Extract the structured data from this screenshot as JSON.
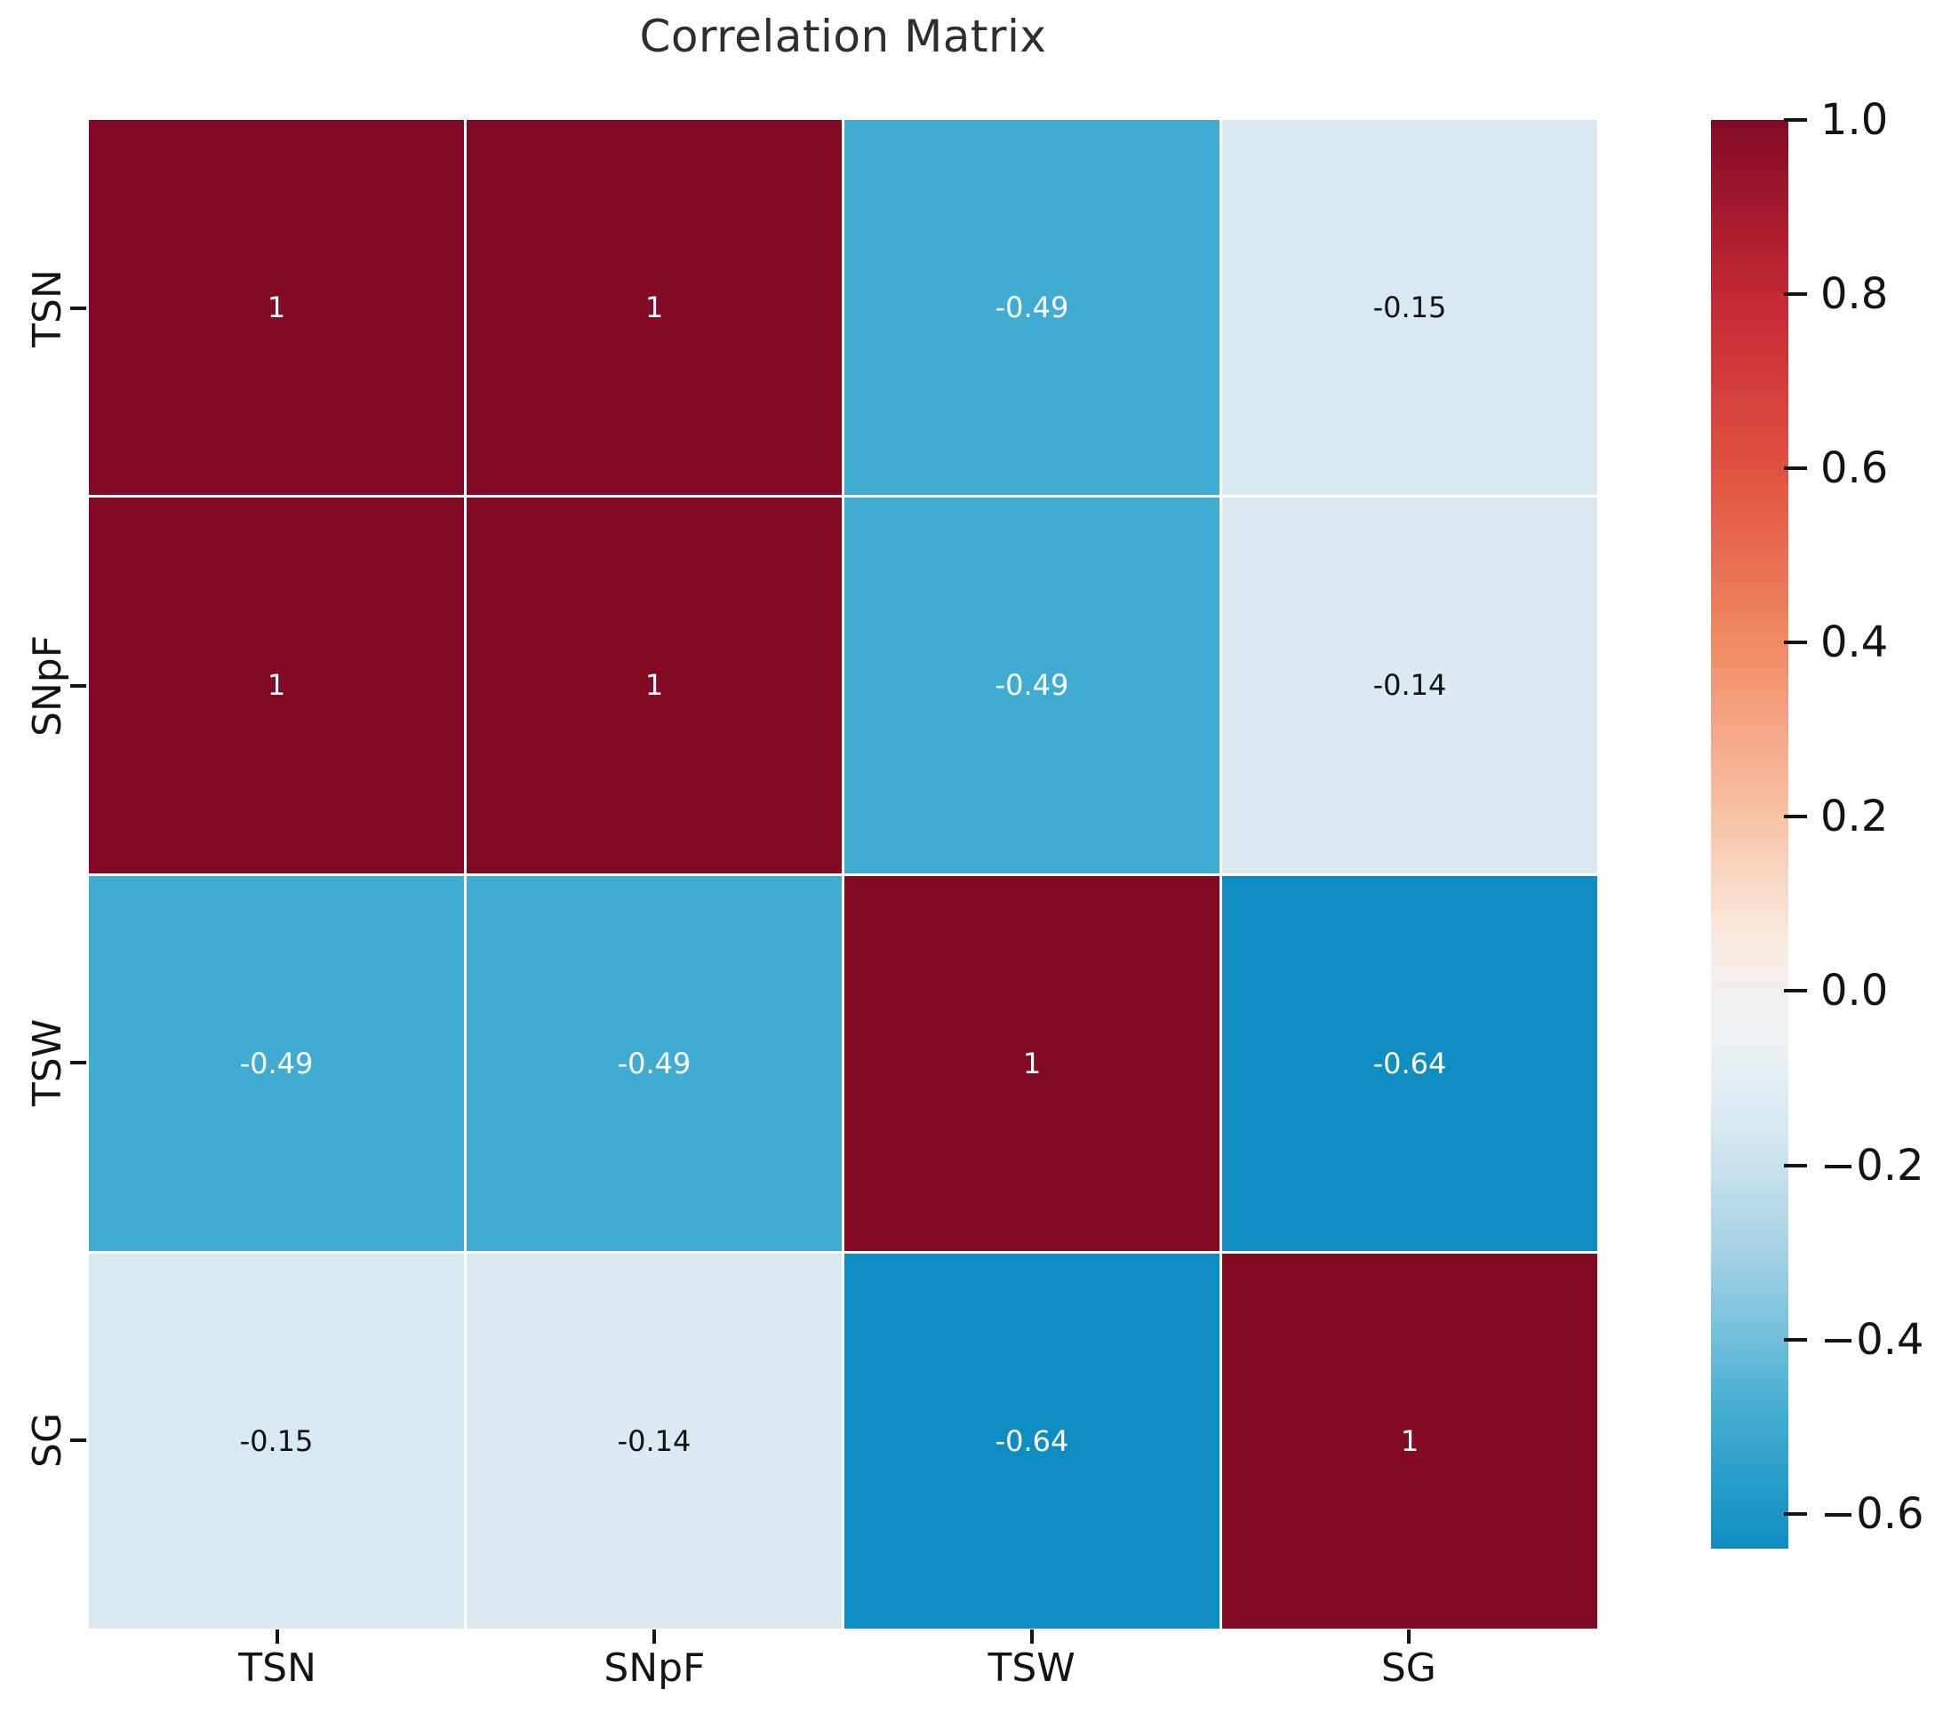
{
  "title": "Correlation Matrix",
  "chart_data": {
    "type": "heatmap",
    "categories": [
      "TSN",
      "SNpF",
      "TSW",
      "SG"
    ],
    "matrix": [
      [
        1,
        1,
        -0.49,
        -0.15
      ],
      [
        1,
        1,
        -0.49,
        -0.14
      ],
      [
        -0.49,
        -0.49,
        1,
        -0.64
      ],
      [
        -0.15,
        -0.14,
        -0.64,
        1
      ]
    ],
    "cell_labels": [
      [
        "1",
        "1",
        "-0.49",
        "-0.15"
      ],
      [
        "1",
        "1",
        "-0.49",
        "-0.14"
      ],
      [
        "-0.49",
        "-0.49",
        "1",
        "-0.64"
      ],
      [
        "-0.15",
        "-0.14",
        "-0.64",
        "1"
      ]
    ],
    "vmin": -0.64,
    "vmax": 1.0,
    "grid": false,
    "legend_position": "right-colorbar",
    "colorbar_ticks": [
      {
        "value": 1.0,
        "label": "1.0"
      },
      {
        "value": 0.8,
        "label": "0.8"
      },
      {
        "value": 0.6,
        "label": "0.6"
      },
      {
        "value": 0.4,
        "label": "0.4"
      },
      {
        "value": 0.2,
        "label": "0.2"
      },
      {
        "value": 0.0,
        "label": "0.0"
      },
      {
        "value": -0.2,
        "label": "−0.2"
      },
      {
        "value": -0.4,
        "label": "−0.4"
      },
      {
        "value": -0.6,
        "label": "−0.6"
      }
    ],
    "colormap_stops": [
      {
        "v": 1.0,
        "c": "#820a24"
      },
      {
        "v": 0.8,
        "c": "#c32834"
      },
      {
        "v": 0.6,
        "c": "#e05141"
      },
      {
        "v": 0.4,
        "c": "#f08a64"
      },
      {
        "v": 0.2,
        "c": "#f8c3a6"
      },
      {
        "v": 0.05,
        "c": "#f9ece3"
      },
      {
        "v": -0.05,
        "c": "#edf2f5"
      },
      {
        "v": -0.15,
        "c": "#d9e9f1"
      },
      {
        "v": -0.3,
        "c": "#a5d2e5"
      },
      {
        "v": -0.49,
        "c": "#41acd1"
      },
      {
        "v": -0.64,
        "c": "#0e8dc2"
      }
    ],
    "annotation_text_colors": {
      "light_cells": "#111111",
      "dark_cells": "#ffffff"
    }
  }
}
